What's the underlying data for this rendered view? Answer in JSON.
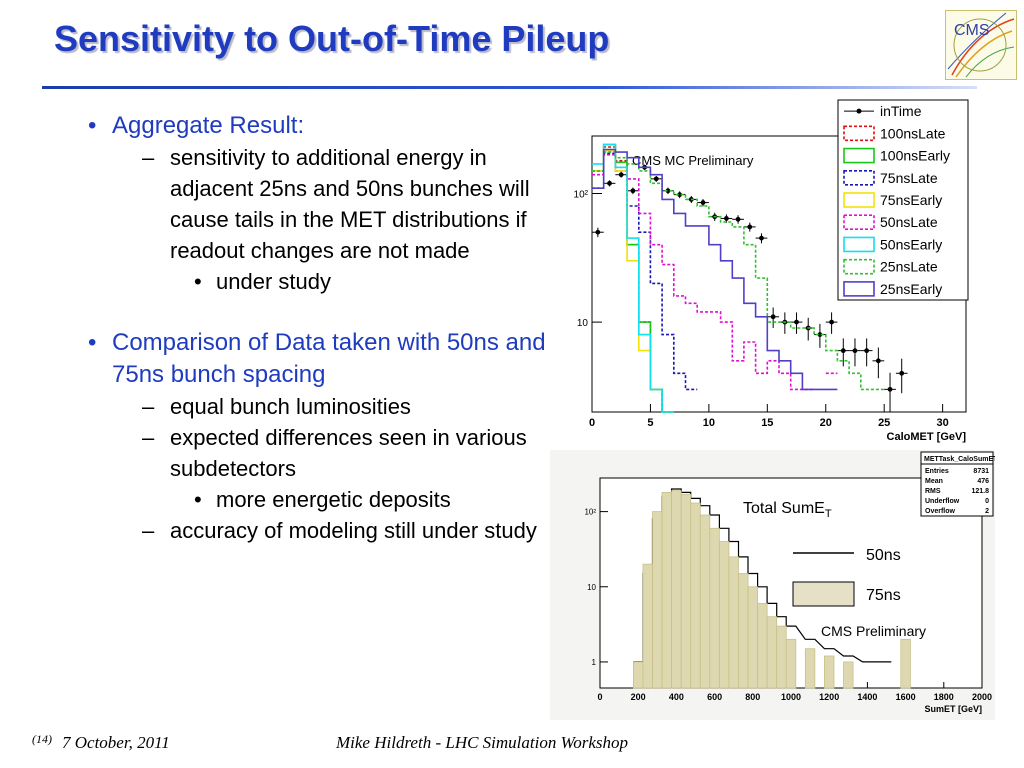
{
  "slide": {
    "title": "Sensitivity to Out-of-Time Pileup"
  },
  "bullets": [
    {
      "level": 1,
      "text": "Aggregate Result:"
    },
    {
      "level": 2,
      "text": "sensitivity to additional energy in adjacent 25ns and 50ns bunches will cause tails in the MET distributions if readout changes are not made"
    },
    {
      "level": 3,
      "text": "under study"
    },
    {
      "level": 1,
      "text": "Comparison of Data taken with 50ns and 75ns bunch spacing"
    },
    {
      "level": 2,
      "text": "equal bunch luminosities"
    },
    {
      "level": 2,
      "text": "expected differences seen in various subdetectors"
    },
    {
      "level": 3,
      "text": "more energetic deposits"
    },
    {
      "level": 2,
      "text": "accuracy of modeling still under study"
    }
  ],
  "footer": {
    "page_number": "(14)",
    "date": "7 October, 2011",
    "presenter": "Mike Hildreth  - LHC Simulation Workshop"
  },
  "colors": {
    "title": "#1f3bbf",
    "bullet_level1": "#1f3bbf",
    "inTime": "#000000",
    "100nsLate": "#e01010",
    "100nsEarly": "#18c818",
    "75nsLate": "#1818b8",
    "75nsEarly": "#f2e20a",
    "50nsLate": "#e010d0",
    "50nsEarly": "#10e0f0",
    "25nsLate": "#30c030",
    "25nsEarly": "#5040c8",
    "50ns": "#000000",
    "75ns": "#c8c088"
  },
  "chart_data": [
    {
      "type": "line",
      "annotation": "CMS MC Preliminary",
      "xlabel": "CaloMET [GeV]",
      "ylabel": "",
      "log_y": true,
      "xlim": [
        0,
        32
      ],
      "ylim": [
        2,
        280
      ],
      "x_ticks": [
        0,
        5,
        10,
        15,
        20,
        25,
        30
      ],
      "y_tick_labels": [
        "10",
        "10²"
      ],
      "legend_position": "top-right",
      "x": [
        0.5,
        1.5,
        2.5,
        3.5,
        4.5,
        5.5,
        6.5,
        7.5,
        8.5,
        9.5,
        10.5,
        11.5,
        12.5,
        13.5,
        14.5,
        15.5,
        16.5,
        17.5,
        18.5,
        19.5,
        20.5,
        21.5,
        22.5,
        23.5,
        24.5,
        25.5,
        26.5
      ],
      "series": [
        {
          "name": "inTime",
          "style": "markers",
          "values": [
            50,
            120,
            140,
            105,
            160,
            130,
            105,
            98,
            90,
            85,
            66,
            64,
            63,
            55,
            45,
            11,
            10,
            10,
            9,
            8,
            10,
            6,
            6,
            6,
            5,
            3,
            4
          ]
        },
        {
          "name": "100nsLate",
          "style": "dotted",
          "values": [
            150,
            230,
            180,
            40,
            10,
            3,
            2,
            null,
            null,
            null,
            null,
            null,
            null,
            null,
            null,
            null,
            null,
            null,
            null,
            null,
            null,
            null,
            null,
            null,
            null,
            null,
            null
          ]
        },
        {
          "name": "100nsEarly",
          "style": "solid",
          "values": [
            150,
            240,
            175,
            40,
            10,
            3,
            2,
            null,
            null,
            null,
            null,
            null,
            null,
            null,
            null,
            null,
            null,
            null,
            null,
            null,
            null,
            null,
            null,
            null,
            null,
            null,
            null
          ]
        },
        {
          "name": "75nsLate",
          "style": "dotted",
          "values": [
            110,
            205,
            150,
            80,
            50,
            20,
            8,
            4,
            3,
            null,
            null,
            null,
            null,
            null,
            null,
            null,
            null,
            null,
            null,
            null,
            null,
            null,
            null,
            null,
            null,
            null,
            null
          ]
        },
        {
          "name": "75nsEarly",
          "style": "solid",
          "values": [
            150,
            215,
            150,
            30,
            6,
            3,
            null,
            null,
            null,
            null,
            null,
            null,
            null,
            null,
            null,
            null,
            null,
            null,
            null,
            null,
            null,
            null,
            null,
            null,
            null,
            null,
            null
          ]
        },
        {
          "name": "50nsLate",
          "style": "dotted",
          "values": [
            140,
            200,
            160,
            130,
            70,
            40,
            28,
            16,
            14,
            12,
            12,
            10,
            5,
            7,
            4,
            5,
            4,
            3,
            3,
            null,
            4,
            null,
            null,
            null,
            null,
            null,
            null
          ]
        },
        {
          "name": "50nsEarly",
          "style": "solid",
          "values": [
            170,
            240,
            160,
            45,
            8,
            3,
            2,
            null,
            null,
            null,
            null,
            null,
            null,
            null,
            null,
            null,
            null,
            null,
            null,
            null,
            null,
            null,
            null,
            null,
            null,
            null,
            null
          ]
        },
        {
          "name": "25nsLate",
          "style": "dotted",
          "values": [
            150,
            210,
            190,
            170,
            150,
            120,
            105,
            98,
            90,
            80,
            66,
            60,
            55,
            40,
            22,
            10,
            10,
            9,
            9,
            8,
            6,
            5,
            4,
            3,
            3,
            null,
            null
          ]
        },
        {
          "name": "25nsEarly",
          "style": "solid",
          "values": [
            110,
            220,
            210,
            190,
            160,
            140,
            90,
            70,
            56,
            56,
            40,
            30,
            22,
            14,
            11,
            6,
            5,
            4,
            3,
            3,
            3,
            null,
            null,
            null,
            null,
            null,
            null
          ]
        }
      ]
    },
    {
      "type": "bar",
      "annotation": "Total SumE",
      "annotation_subscript": "T",
      "sub_annotation": "CMS Preliminary",
      "xlabel": "SumET [GeV]",
      "ylabel": "",
      "log_y": true,
      "xlim": [
        0,
        2000
      ],
      "x_ticks": [
        0,
        200,
        400,
        600,
        800,
        1000,
        1200,
        1400,
        1600,
        1800,
        2000
      ],
      "y_tick_labels": [
        "1",
        "10",
        "10²"
      ],
      "legend_position": "right",
      "stats_box": {
        "name": "METTask_CaloSumET",
        "rows": [
          {
            "label": "Entries",
            "value": "8731"
          },
          {
            "label": "Mean",
            "value": "476"
          },
          {
            "label": "RMS",
            "value": "121.8"
          },
          {
            "label": "Underflow",
            "value": "0"
          },
          {
            "label": "Overflow",
            "value": "2"
          }
        ]
      },
      "x": [
        200,
        250,
        300,
        350,
        400,
        450,
        500,
        550,
        600,
        650,
        700,
        750,
        800,
        850,
        900,
        950,
        1000,
        1100,
        1200,
        1300,
        1400,
        1500,
        1600,
        1700
      ],
      "series": [
        {
          "name": "50ns",
          "style": "line",
          "values": [
            1,
            15,
            80,
            160,
            200,
            180,
            150,
            120,
            90,
            60,
            40,
            25,
            15,
            10,
            6,
            4,
            3,
            2,
            1.5,
            1.2,
            1,
            1,
            null,
            null
          ]
        },
        {
          "name": "75ns",
          "style": "filled",
          "values": [
            1,
            20,
            100,
            180,
            190,
            170,
            130,
            90,
            60,
            40,
            25,
            15,
            10,
            6,
            4,
            3,
            2,
            1.5,
            1.2,
            1,
            null,
            null,
            2,
            null
          ]
        }
      ]
    }
  ]
}
